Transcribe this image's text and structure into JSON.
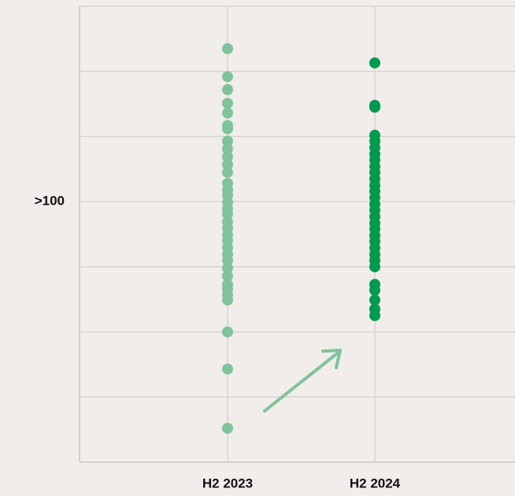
{
  "chart_data": {
    "type": "strip",
    "categories": [
      "H2 2023",
      "H2 2024"
    ],
    "series": [
      {
        "color": "#80c39a",
        "values": [
          123.5,
          119.2,
          117.2,
          115.1,
          113.6,
          111.7,
          111.2,
          109.3,
          108.1,
          106.9,
          105.7,
          104.5,
          102.8,
          101.8,
          101.0,
          99.9,
          98.9,
          98.1,
          96.9,
          95.9,
          94.9,
          94.0,
          92.9,
          91.9,
          91.0,
          89.8,
          88.6,
          87.3,
          86.6,
          85.7,
          84.9,
          80.0,
          74.3,
          65.2
        ]
      },
      {
        "color": "#009a4e",
        "values": [
          121.3,
          114.8,
          114.5,
          110.2,
          109.3,
          108.3,
          107.3,
          106.4,
          105.4,
          104.5,
          103.5,
          102.5,
          101.6,
          100.6,
          99.6,
          98.7,
          97.7,
          96.7,
          95.8,
          94.8,
          93.9,
          92.9,
          91.9,
          91.0,
          90.0,
          87.3,
          86.4,
          84.9,
          83.5,
          82.5
        ]
      }
    ],
    "ylim": [
      60,
      130
    ],
    "yticks": [
      {
        "value": 100,
        "label": ">100"
      }
    ],
    "ygrid": [
      70,
      80,
      90,
      110,
      120
    ],
    "grid": true
  }
}
